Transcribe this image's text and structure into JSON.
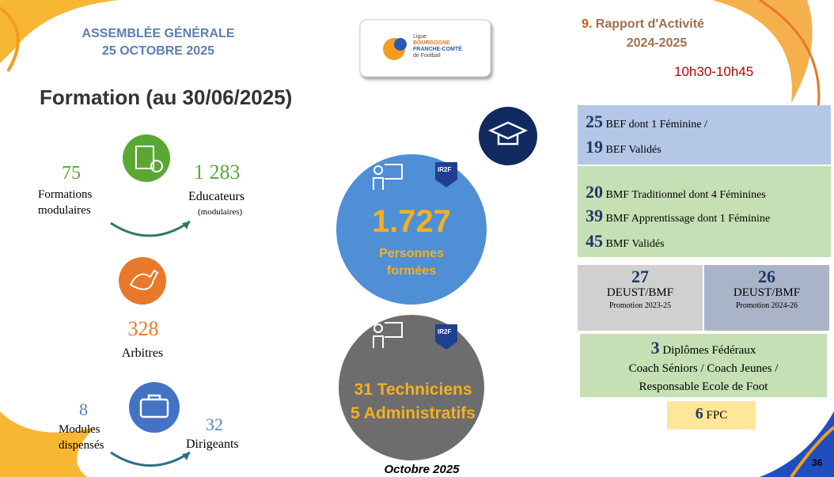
{
  "header": {
    "event": "ASSEMBLÉE GÉNÉRALE",
    "date": "25 OCTOBRE 2025"
  },
  "logo": {
    "line1": "Ligue",
    "line2": "BOURGOGNE",
    "line3": "FRANCHE-COMTÉ",
    "line4": "de Football"
  },
  "section": {
    "number": "9.",
    "title": "Rapport d'Activité",
    "period": "2024-2025",
    "time": "10h30-10h45"
  },
  "title": "Formation (au 30/06/2025)",
  "left": {
    "formations": {
      "value": "75",
      "label1": "Formations",
      "label2": "modulaires"
    },
    "educateurs": {
      "value": "1 283",
      "label": "Educateurs",
      "note": "(modulaires)"
    },
    "arbitres": {
      "value": "328",
      "label": "Arbitres"
    },
    "modules": {
      "value": "8",
      "label1": "Modules",
      "label2": "dispensés"
    },
    "dirigeants": {
      "value": "32",
      "label": "Dirigeants"
    }
  },
  "center": {
    "badge": "IR2F",
    "trained": {
      "value": "1.727",
      "label1": "Personnes",
      "label2": "formées"
    },
    "staff": {
      "line1": "31 Techniciens",
      "line2": "5 Administratifs"
    },
    "footer": "Octobre 2025"
  },
  "right": {
    "bef": [
      {
        "value": "25",
        "text": "BEF dont 1 Féminine /"
      },
      {
        "value": "19",
        "text": "BEF Validés"
      }
    ],
    "bmf": [
      {
        "value": "20",
        "text": "BMF Traditionnel dont 4 Féminines"
      },
      {
        "value": "39",
        "text": "BMF Apprentissage dont 1 Féminine"
      },
      {
        "value": "45",
        "text": "BMF Validés"
      }
    ],
    "deust": [
      {
        "value": "27",
        "label": "DEUST/BMF",
        "promo": "Promotion 2023-25"
      },
      {
        "value": "26",
        "label": "DEUST/BMF",
        "promo": "Promotion 2024-26"
      }
    ],
    "federal": {
      "value": "3",
      "text": "Diplômes Fédéraux",
      "line2": "Coach Séniors / Coach Jeunes /",
      "line3": "Responsable Ecole de Foot"
    },
    "fpc": {
      "value": "6",
      "text": "FPC"
    }
  },
  "page": "36"
}
